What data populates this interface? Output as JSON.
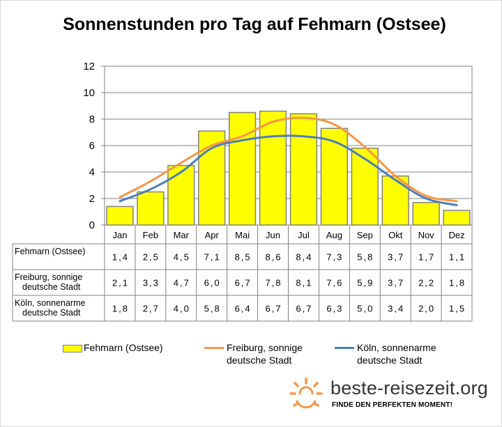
{
  "chart_data": {
    "type": "bar",
    "title": "Sonnenstunden pro Tag auf Fehmarn (Ostsee)",
    "categories": [
      "Jan",
      "Feb",
      "Mar",
      "Apr",
      "Mai",
      "Jun",
      "Jul",
      "Aug",
      "Sep",
      "Okt",
      "Nov",
      "Dez"
    ],
    "ylim": [
      0,
      12
    ],
    "yticks": [
      "0",
      "2",
      "4",
      "6",
      "8",
      "10",
      "12"
    ],
    "grid": true,
    "legend_position": "bottom",
    "series": [
      {
        "name": "Fehmarn (Ostsee)",
        "table_label": [
          "Fehmarn (Ostsee)"
        ],
        "kind": "bar",
        "color": "#ffff00",
        "values": [
          1.4,
          2.5,
          4.5,
          7.1,
          8.5,
          8.6,
          8.4,
          7.3,
          5.8,
          3.7,
          1.7,
          1.1
        ],
        "labels": [
          "1,4",
          "2,5",
          "4,5",
          "7,1",
          "8,5",
          "8,6",
          "8,4",
          "7,3",
          "5,8",
          "3,7",
          "1,7",
          "1,1"
        ]
      },
      {
        "name": "Freiburg, sonnige deutsche Stadt",
        "table_label": [
          "Freiburg, sonnige",
          "deutsche Stadt"
        ],
        "kind": "line",
        "color": "#f79646",
        "values": [
          2.1,
          3.3,
          4.7,
          6.0,
          6.7,
          7.8,
          8.1,
          7.6,
          5.9,
          3.7,
          2.2,
          1.8
        ],
        "labels": [
          "2,1",
          "3,3",
          "4,7",
          "6,0",
          "6,7",
          "7,8",
          "8,1",
          "7,6",
          "5,9",
          "3,7",
          "2,2",
          "1,8"
        ]
      },
      {
        "name": "Köln, sonnenarme deutsche Stadt",
        "table_label": [
          "Köln, sonnenarme",
          "deutsche Stadt"
        ],
        "kind": "line",
        "color": "#4a7ebb",
        "values": [
          1.8,
          2.7,
          4.0,
          5.8,
          6.4,
          6.7,
          6.7,
          6.3,
          5.0,
          3.4,
          2.0,
          1.5
        ],
        "labels": [
          "1,8",
          "2,7",
          "4,0",
          "5,8",
          "6,4",
          "6,7",
          "6,7",
          "6,3",
          "5,0",
          "3,4",
          "2,0",
          "1,5"
        ]
      }
    ]
  },
  "legend": {
    "fehmarn": "Fehmarn (Ostsee)",
    "freiburg_line1": "Freiburg, sonnige",
    "freiburg_line2": "deutsche Stadt",
    "koeln_line1": "Köln, sonnenarme",
    "koeln_line2": "deutsche Stadt"
  },
  "logo": {
    "name": "beste-reisezeit.org",
    "slogan": "FINDE DEN PERFEKTEN MOMENT!",
    "icon": "sun-icon",
    "color": "#f79646"
  }
}
